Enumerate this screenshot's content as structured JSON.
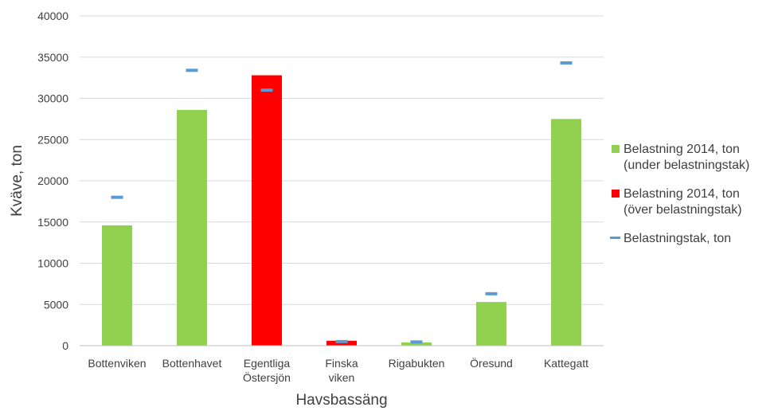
{
  "chart_data": {
    "type": "bar",
    "title": "",
    "xlabel": "Havsbassäng",
    "ylabel": "Kväve, ton",
    "ylim": [
      0,
      40000
    ],
    "yticks": [
      0,
      5000,
      10000,
      15000,
      20000,
      25000,
      30000,
      35000,
      40000
    ],
    "grid": true,
    "legend_position": "right",
    "categories": [
      [
        "Bottenviken"
      ],
      [
        "Bottenhavet"
      ],
      [
        "Egentliga",
        "Östersjön"
      ],
      [
        "Finska",
        "viken"
      ],
      [
        "Rigabukten"
      ],
      [
        "Öresund"
      ],
      [
        "Kattegatt"
      ]
    ],
    "series": [
      {
        "name": [
          "Belastning 2014, ton",
          "(under belastningstak)"
        ],
        "kind": "bar",
        "color": "#92d050",
        "values": [
          14600,
          28600,
          null,
          null,
          400,
          5300,
          27500
        ]
      },
      {
        "name": [
          "Belastning 2014, ton",
          "(över belastningstak)"
        ],
        "kind": "bar",
        "color": "#ff0000",
        "values": [
          null,
          null,
          32800,
          600,
          null,
          null,
          null
        ]
      },
      {
        "name": [
          "Belastningstak, ton"
        ],
        "kind": "marker",
        "color": "#5b9bd5",
        "values": [
          18000,
          33400,
          31000,
          500,
          450,
          6300,
          34300
        ]
      }
    ]
  }
}
